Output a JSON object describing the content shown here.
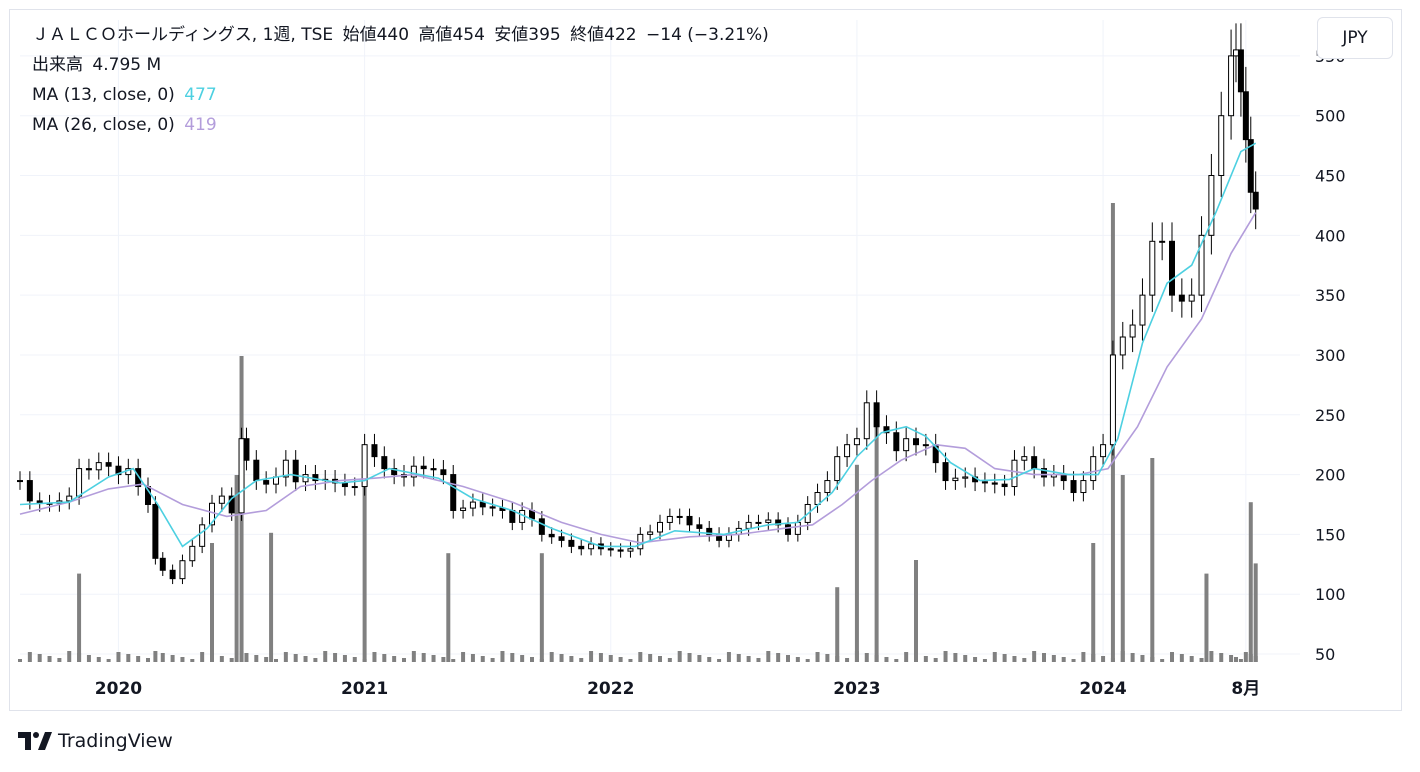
{
  "header": {
    "title": "ＪＡＬＣＯホールディングス, 1週, TSE",
    "ohlc": [
      {
        "label": "始値",
        "value": "440"
      },
      {
        "label": "高値",
        "value": "454"
      },
      {
        "label": "安値",
        "value": "395"
      },
      {
        "label": "終値",
        "value": "422"
      }
    ],
    "change": "−14 (−3.21%)",
    "volume_label": "出来高",
    "volume_value": "4.795 M",
    "ma1_label": "MA (13, close, 0)",
    "ma1_value": "477",
    "ma2_label": "MA (26, close, 0)",
    "ma2_value": "419"
  },
  "currency": "JPY",
  "brand": "TradingView",
  "colors": {
    "ma13": "#4dd0e1",
    "ma26": "#b39ddb",
    "volume": "#808080",
    "candle_border": "#000000",
    "down_fill": "#000000",
    "up_fill": "#ffffff",
    "grid": "#f0f3fa"
  },
  "chart_data": {
    "type": "candlestick",
    "interval": "1週",
    "y_axis_ticks": [
      50,
      100,
      150,
      200,
      250,
      300,
      350,
      400,
      450,
      500,
      550
    ],
    "y_range": [
      45,
      580
    ],
    "x_axis_labels": [
      {
        "label": "2020",
        "t": 2020.0
      },
      {
        "label": "2021",
        "t": 2021.0
      },
      {
        "label": "2022",
        "t": 2022.0
      },
      {
        "label": "2023",
        "t": 2023.0
      },
      {
        "label": "2024",
        "t": 2024.0
      },
      {
        "label": "8月",
        "t": 2024.58
      }
    ],
    "x_range": [
      2019.6,
      2024.8
    ],
    "price_series": [
      {
        "t": 2019.6,
        "close": 195
      },
      {
        "t": 2019.64,
        "close": 178
      },
      {
        "t": 2019.68,
        "close": 176
      },
      {
        "t": 2019.72,
        "close": 176
      },
      {
        "t": 2019.76,
        "close": 178
      },
      {
        "t": 2019.8,
        "close": 182
      },
      {
        "t": 2019.84,
        "close": 205
      },
      {
        "t": 2019.88,
        "close": 204
      },
      {
        "t": 2019.92,
        "close": 210
      },
      {
        "t": 2019.96,
        "close": 207
      },
      {
        "t": 2020.0,
        "close": 200
      },
      {
        "t": 2020.04,
        "close": 205
      },
      {
        "t": 2020.08,
        "close": 190
      },
      {
        "t": 2020.12,
        "close": 175
      },
      {
        "t": 2020.15,
        "close": 130
      },
      {
        "t": 2020.18,
        "close": 120
      },
      {
        "t": 2020.22,
        "close": 113
      },
      {
        "t": 2020.26,
        "close": 128
      },
      {
        "t": 2020.3,
        "close": 140
      },
      {
        "t": 2020.34,
        "close": 158
      },
      {
        "t": 2020.38,
        "close": 176
      },
      {
        "t": 2020.42,
        "close": 182
      },
      {
        "t": 2020.46,
        "close": 168
      },
      {
        "t": 2020.5,
        "close": 230
      },
      {
        "t": 2020.52,
        "close": 212
      },
      {
        "t": 2020.56,
        "close": 195
      },
      {
        "t": 2020.6,
        "close": 192
      },
      {
        "t": 2020.64,
        "close": 198
      },
      {
        "t": 2020.68,
        "close": 212
      },
      {
        "t": 2020.72,
        "close": 194
      },
      {
        "t": 2020.76,
        "close": 200
      },
      {
        "t": 2020.8,
        "close": 195
      },
      {
        "t": 2020.84,
        "close": 196
      },
      {
        "t": 2020.88,
        "close": 193
      },
      {
        "t": 2020.92,
        "close": 190
      },
      {
        "t": 2020.96,
        "close": 190
      },
      {
        "t": 2021.0,
        "close": 225
      },
      {
        "t": 2021.04,
        "close": 215
      },
      {
        "t": 2021.08,
        "close": 205
      },
      {
        "t": 2021.12,
        "close": 200
      },
      {
        "t": 2021.16,
        "close": 198
      },
      {
        "t": 2021.2,
        "close": 207
      },
      {
        "t": 2021.24,
        "close": 205
      },
      {
        "t": 2021.28,
        "close": 204
      },
      {
        "t": 2021.32,
        "close": 200
      },
      {
        "t": 2021.36,
        "close": 170
      },
      {
        "t": 2021.4,
        "close": 172
      },
      {
        "t": 2021.44,
        "close": 177
      },
      {
        "t": 2021.48,
        "close": 173
      },
      {
        "t": 2021.52,
        "close": 172
      },
      {
        "t": 2021.56,
        "close": 170
      },
      {
        "t": 2021.6,
        "close": 160
      },
      {
        "t": 2021.64,
        "close": 170
      },
      {
        "t": 2021.68,
        "close": 163
      },
      {
        "t": 2021.72,
        "close": 150
      },
      {
        "t": 2021.76,
        "close": 148
      },
      {
        "t": 2021.8,
        "close": 145
      },
      {
        "t": 2021.84,
        "close": 140
      },
      {
        "t": 2021.88,
        "close": 138
      },
      {
        "t": 2021.92,
        "close": 142
      },
      {
        "t": 2021.96,
        "close": 138
      },
      {
        "t": 2022.0,
        "close": 137
      },
      {
        "t": 2022.04,
        "close": 136
      },
      {
        "t": 2022.08,
        "close": 138
      },
      {
        "t": 2022.12,
        "close": 150
      },
      {
        "t": 2022.16,
        "close": 152
      },
      {
        "t": 2022.2,
        "close": 160
      },
      {
        "t": 2022.24,
        "close": 165
      },
      {
        "t": 2022.28,
        "close": 165
      },
      {
        "t": 2022.32,
        "close": 158
      },
      {
        "t": 2022.36,
        "close": 155
      },
      {
        "t": 2022.4,
        "close": 150
      },
      {
        "t": 2022.44,
        "close": 145
      },
      {
        "t": 2022.48,
        "close": 150
      },
      {
        "t": 2022.52,
        "close": 155
      },
      {
        "t": 2022.56,
        "close": 160
      },
      {
        "t": 2022.6,
        "close": 160
      },
      {
        "t": 2022.64,
        "close": 162
      },
      {
        "t": 2022.68,
        "close": 158
      },
      {
        "t": 2022.72,
        "close": 150
      },
      {
        "t": 2022.76,
        "close": 160
      },
      {
        "t": 2022.8,
        "close": 175
      },
      {
        "t": 2022.84,
        "close": 185
      },
      {
        "t": 2022.88,
        "close": 195
      },
      {
        "t": 2022.92,
        "close": 215
      },
      {
        "t": 2022.96,
        "close": 225
      },
      {
        "t": 2023.0,
        "close": 230
      },
      {
        "t": 2023.04,
        "close": 260
      },
      {
        "t": 2023.08,
        "close": 240
      },
      {
        "t": 2023.12,
        "close": 235
      },
      {
        "t": 2023.16,
        "close": 220
      },
      {
        "t": 2023.2,
        "close": 230
      },
      {
        "t": 2023.24,
        "close": 225
      },
      {
        "t": 2023.28,
        "close": 225
      },
      {
        "t": 2023.32,
        "close": 210
      },
      {
        "t": 2023.36,
        "close": 195
      },
      {
        "t": 2023.4,
        "close": 197
      },
      {
        "t": 2023.44,
        "close": 198
      },
      {
        "t": 2023.48,
        "close": 194
      },
      {
        "t": 2023.52,
        "close": 193
      },
      {
        "t": 2023.56,
        "close": 192
      },
      {
        "t": 2023.6,
        "close": 190
      },
      {
        "t": 2023.64,
        "close": 212
      },
      {
        "t": 2023.68,
        "close": 215
      },
      {
        "t": 2023.72,
        "close": 205
      },
      {
        "t": 2023.76,
        "close": 198
      },
      {
        "t": 2023.8,
        "close": 200
      },
      {
        "t": 2023.84,
        "close": 195
      },
      {
        "t": 2023.88,
        "close": 185
      },
      {
        "t": 2023.92,
        "close": 195
      },
      {
        "t": 2023.96,
        "close": 215
      },
      {
        "t": 2024.0,
        "close": 225
      },
      {
        "t": 2024.04,
        "close": 300
      },
      {
        "t": 2024.08,
        "close": 315
      },
      {
        "t": 2024.12,
        "close": 325
      },
      {
        "t": 2024.16,
        "close": 350
      },
      {
        "t": 2024.2,
        "close": 395
      },
      {
        "t": 2024.24,
        "close": 395
      },
      {
        "t": 2024.28,
        "close": 350
      },
      {
        "t": 2024.32,
        "close": 345
      },
      {
        "t": 2024.36,
        "close": 350
      },
      {
        "t": 2024.4,
        "close": 400
      },
      {
        "t": 2024.44,
        "close": 450
      },
      {
        "t": 2024.48,
        "close": 500
      },
      {
        "t": 2024.52,
        "close": 550
      },
      {
        "t": 2024.54,
        "close": 555
      },
      {
        "t": 2024.56,
        "close": 520
      },
      {
        "t": 2024.58,
        "close": 480
      },
      {
        "t": 2024.6,
        "close": 436
      },
      {
        "t": 2024.62,
        "close": 422
      }
    ],
    "ma13": [
      {
        "t": 2019.6,
        "v": 175
      },
      {
        "t": 2019.8,
        "v": 177
      },
      {
        "t": 2019.96,
        "v": 198
      },
      {
        "t": 2020.06,
        "v": 205
      },
      {
        "t": 2020.16,
        "v": 175
      },
      {
        "t": 2020.26,
        "v": 140
      },
      {
        "t": 2020.36,
        "v": 155
      },
      {
        "t": 2020.46,
        "v": 180
      },
      {
        "t": 2020.56,
        "v": 195
      },
      {
        "t": 2020.7,
        "v": 200
      },
      {
        "t": 2020.9,
        "v": 193
      },
      {
        "t": 2021.0,
        "v": 195
      },
      {
        "t": 2021.1,
        "v": 205
      },
      {
        "t": 2021.3,
        "v": 197
      },
      {
        "t": 2021.44,
        "v": 180
      },
      {
        "t": 2021.6,
        "v": 170
      },
      {
        "t": 2021.76,
        "v": 155
      },
      {
        "t": 2021.96,
        "v": 140
      },
      {
        "t": 2022.1,
        "v": 140
      },
      {
        "t": 2022.26,
        "v": 153
      },
      {
        "t": 2022.46,
        "v": 150
      },
      {
        "t": 2022.64,
        "v": 158
      },
      {
        "t": 2022.76,
        "v": 160
      },
      {
        "t": 2022.9,
        "v": 185
      },
      {
        "t": 2023.0,
        "v": 215
      },
      {
        "t": 2023.1,
        "v": 235
      },
      {
        "t": 2023.2,
        "v": 240
      },
      {
        "t": 2023.28,
        "v": 232
      },
      {
        "t": 2023.38,
        "v": 210
      },
      {
        "t": 2023.5,
        "v": 195
      },
      {
        "t": 2023.62,
        "v": 196
      },
      {
        "t": 2023.72,
        "v": 205
      },
      {
        "t": 2023.86,
        "v": 200
      },
      {
        "t": 2023.98,
        "v": 200
      },
      {
        "t": 2024.06,
        "v": 230
      },
      {
        "t": 2024.16,
        "v": 310
      },
      {
        "t": 2024.26,
        "v": 360
      },
      {
        "t": 2024.36,
        "v": 375
      },
      {
        "t": 2024.46,
        "v": 420
      },
      {
        "t": 2024.56,
        "v": 470
      },
      {
        "t": 2024.62,
        "v": 477
      }
    ],
    "ma26": [
      {
        "t": 2019.6,
        "v": 167
      },
      {
        "t": 2019.8,
        "v": 177
      },
      {
        "t": 2019.96,
        "v": 188
      },
      {
        "t": 2020.1,
        "v": 192
      },
      {
        "t": 2020.26,
        "v": 175
      },
      {
        "t": 2020.44,
        "v": 165
      },
      {
        "t": 2020.6,
        "v": 170
      },
      {
        "t": 2020.74,
        "v": 190
      },
      {
        "t": 2020.9,
        "v": 195
      },
      {
        "t": 2021.04,
        "v": 197
      },
      {
        "t": 2021.2,
        "v": 200
      },
      {
        "t": 2021.4,
        "v": 190
      },
      {
        "t": 2021.6,
        "v": 177
      },
      {
        "t": 2021.8,
        "v": 160
      },
      {
        "t": 2021.96,
        "v": 150
      },
      {
        "t": 2022.12,
        "v": 143
      },
      {
        "t": 2022.32,
        "v": 148
      },
      {
        "t": 2022.52,
        "v": 150
      },
      {
        "t": 2022.7,
        "v": 155
      },
      {
        "t": 2022.82,
        "v": 158
      },
      {
        "t": 2022.94,
        "v": 175
      },
      {
        "t": 2023.06,
        "v": 195
      },
      {
        "t": 2023.18,
        "v": 212
      },
      {
        "t": 2023.32,
        "v": 225
      },
      {
        "t": 2023.44,
        "v": 222
      },
      {
        "t": 2023.56,
        "v": 205
      },
      {
        "t": 2023.72,
        "v": 200
      },
      {
        "t": 2023.9,
        "v": 200
      },
      {
        "t": 2024.02,
        "v": 205
      },
      {
        "t": 2024.14,
        "v": 240
      },
      {
        "t": 2024.26,
        "v": 290
      },
      {
        "t": 2024.4,
        "v": 330
      },
      {
        "t": 2024.52,
        "v": 385
      },
      {
        "t": 2024.62,
        "v": 419
      }
    ],
    "volume_bars": [
      {
        "t": 2019.84,
        "v": 26
      },
      {
        "t": 2020.38,
        "v": 35
      },
      {
        "t": 2020.48,
        "v": 55
      },
      {
        "t": 2020.5,
        "v": 90
      },
      {
        "t": 2020.62,
        "v": 38
      },
      {
        "t": 2021.0,
        "v": 60
      },
      {
        "t": 2021.34,
        "v": 32
      },
      {
        "t": 2021.72,
        "v": 32
      },
      {
        "t": 2022.92,
        "v": 22
      },
      {
        "t": 2023.0,
        "v": 58
      },
      {
        "t": 2023.08,
        "v": 75
      },
      {
        "t": 2023.24,
        "v": 30
      },
      {
        "t": 2023.96,
        "v": 35
      },
      {
        "t": 2024.04,
        "v": 135
      },
      {
        "t": 2024.08,
        "v": 55
      },
      {
        "t": 2024.2,
        "v": 60
      },
      {
        "t": 2024.42,
        "v": 26
      },
      {
        "t": 2024.6,
        "v": 47
      },
      {
        "t": 2024.62,
        "v": 29
      }
    ]
  }
}
